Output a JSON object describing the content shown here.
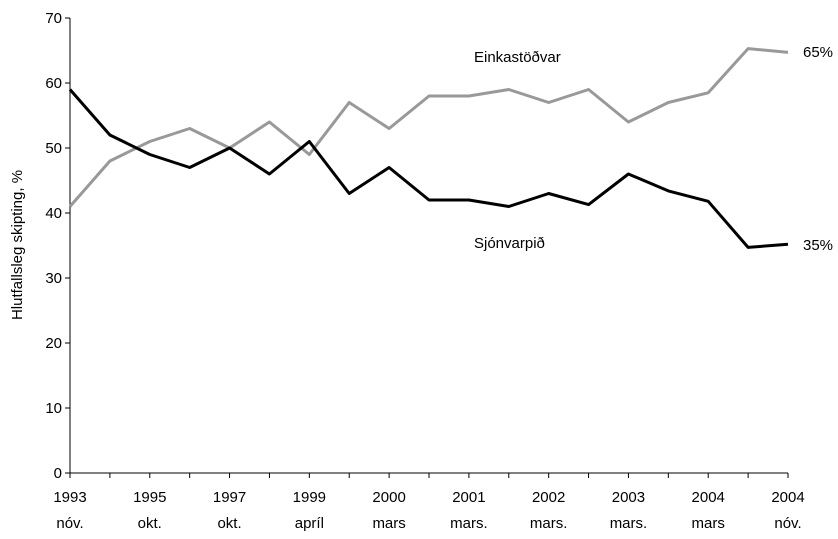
{
  "chart_data": {
    "type": "line",
    "ylabel": "Hlutfallsleg skipting, %",
    "xlabel": "",
    "ylim": [
      0,
      70
    ],
    "yticks": [
      0,
      10,
      20,
      30,
      40,
      50,
      60,
      70
    ],
    "grid": false,
    "x_tick_labels": [
      {
        "year": "1993",
        "period": "nóv."
      },
      {
        "year": "1995",
        "period": "okt."
      },
      {
        "year": "1997",
        "period": "okt."
      },
      {
        "year": "1999",
        "period": "apríl"
      },
      {
        "year": "2000",
        "period": "mars"
      },
      {
        "year": "2001",
        "period": "mars."
      },
      {
        "year": "2002",
        "period": "mars."
      },
      {
        "year": "2003",
        "period": "mars."
      },
      {
        "year": "2004",
        "period": "mars"
      },
      {
        "year": "2004",
        "period": "nóv."
      }
    ],
    "series": [
      {
        "name": "Einkastöðvar",
        "color": "#999999",
        "end_label": "65%",
        "values": [
          41,
          48,
          51,
          53,
          50,
          54,
          49,
          57,
          53,
          58,
          58,
          59,
          57,
          59,
          54,
          57,
          58.5,
          65.3,
          64.7
        ]
      },
      {
        "name": "Sjónvarpið",
        "color": "#000000",
        "end_label": "35%",
        "values": [
          59,
          52,
          49,
          47,
          50,
          46,
          51,
          43,
          47,
          42,
          42,
          41,
          43,
          41.3,
          46,
          43.4,
          41.8,
          34.7,
          35.2
        ]
      }
    ]
  }
}
